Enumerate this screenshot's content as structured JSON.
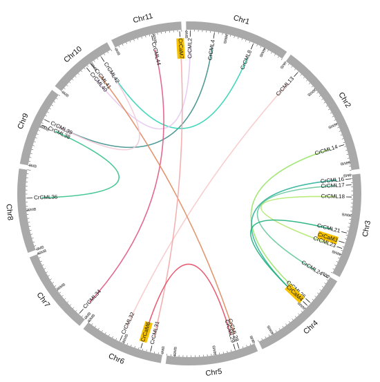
{
  "chromosomes": [
    {
      "id": "Chr1",
      "label": "Chr1",
      "size": 50,
      "ticks": [
        {
          "v": 0,
          "label": "0MB"
        },
        {
          "v": 20,
          "label": "20MB"
        },
        {
          "v": 40,
          "label": "40MB"
        }
      ]
    },
    {
      "id": "Chr2",
      "label": "Chr2",
      "size": 64,
      "ticks": [
        {
          "v": 0,
          "label": "0MB"
        },
        {
          "v": 20,
          "label": "20MB"
        },
        {
          "v": 40,
          "label": "40MB"
        },
        {
          "v": 60,
          "label": "60MB"
        }
      ]
    },
    {
      "id": "Chr3",
      "label": "Chr3",
      "size": 50,
      "ticks": [
        {
          "v": 0,
          "label": "0MB"
        },
        {
          "v": 20,
          "label": "20MB"
        },
        {
          "v": 40,
          "label": "40MB"
        }
      ]
    },
    {
      "id": "Chr4",
      "label": "Chr4",
      "size": 48,
      "ticks": [
        {
          "v": 0,
          "label": "0MB"
        },
        {
          "v": 20,
          "label": "20MB"
        },
        {
          "v": 40,
          "label": "40MB"
        }
      ]
    },
    {
      "id": "Chr5",
      "label": "Chr5",
      "size": 44,
      "ticks": [
        {
          "v": 0,
          "label": "0MB"
        },
        {
          "v": 20,
          "label": "20MB"
        },
        {
          "v": 40,
          "label": "40MB"
        }
      ]
    },
    {
      "id": "Chr6",
      "label": "Chr6",
      "size": 40,
      "ticks": [
        {
          "v": 0,
          "label": "0MB"
        },
        {
          "v": 20,
          "label": "20MB"
        },
        {
          "v": 40,
          "label": "40MB"
        }
      ]
    },
    {
      "id": "Chr7",
      "label": "Chr7",
      "size": 40,
      "ticks": [
        {
          "v": 0,
          "label": "0MB"
        },
        {
          "v": 20,
          "label": "20MB"
        },
        {
          "v": 40,
          "label": "40MB"
        }
      ]
    },
    {
      "id": "Chr8",
      "label": "Chr8",
      "size": 40,
      "ticks": [
        {
          "v": 0,
          "label": "0MB"
        },
        {
          "v": 20,
          "label": "20MB"
        }
      ]
    },
    {
      "id": "Chr9",
      "label": "Chr9",
      "size": 38,
      "ticks": [
        {
          "v": 0,
          "label": "0MB"
        },
        {
          "v": 20,
          "label": "20MB"
        }
      ]
    },
    {
      "id": "Chr10",
      "label": "Chr10",
      "size": 32,
      "ticks": [
        {
          "v": 0,
          "label": "0MB"
        },
        {
          "v": 20,
          "label": "20MB"
        }
      ]
    },
    {
      "id": "Chr11",
      "label": "Chr11",
      "size": 34,
      "ticks": [
        {
          "v": 0,
          "label": "0MB"
        },
        {
          "v": 20,
          "label": "20MB"
        }
      ]
    }
  ],
  "genes": [
    {
      "id": "CrCML2",
      "chr": "Chr1",
      "pos": 2,
      "highlight": false
    },
    {
      "id": "CrCML4",
      "chr": "Chr1",
      "pos": 14,
      "highlight": false
    },
    {
      "id": "CrCML8",
      "chr": "Chr1",
      "pos": 34,
      "highlight": false
    },
    {
      "id": "CrCML13",
      "chr": "Chr2",
      "pos": 8,
      "highlight": false
    },
    {
      "id": "CrCML14",
      "chr": "Chr2",
      "pos": 51,
      "highlight": false
    },
    {
      "id": "CrCML16",
      "chr": "Chr3",
      "pos": 2,
      "highlight": false
    },
    {
      "id": "CrCML17",
      "chr": "Chr3",
      "pos": 5,
      "highlight": false
    },
    {
      "id": "CrCML18",
      "chr": "Chr3",
      "pos": 11,
      "highlight": false
    },
    {
      "id": "CrCML21",
      "chr": "Chr3",
      "pos": 29,
      "highlight": false
    },
    {
      "id": "CrCaM3",
      "chr": "Chr3",
      "pos": 34,
      "highlight": true
    },
    {
      "id": "CrCML23",
      "chr": "Chr3",
      "pos": 37,
      "highlight": false
    },
    {
      "id": "CrCML24",
      "chr": "Chr4",
      "pos": 1,
      "highlight": false
    },
    {
      "id": "CrCML26",
      "chr": "Chr4",
      "pos": 16,
      "highlight": false
    },
    {
      "id": "CrCaM4",
      "chr": "Chr4",
      "pos": 18,
      "highlight": true
    },
    {
      "id": "CrCML28",
      "chr": "Chr5",
      "pos": 8,
      "highlight": false
    },
    {
      "id": "CrCML29",
      "chr": "Chr5",
      "pos": 10,
      "highlight": false
    },
    {
      "id": "CrCML31",
      "chr": "Chr6",
      "pos": 6,
      "highlight": false
    },
    {
      "id": "CrCaM6",
      "chr": "Chr6",
      "pos": 11,
      "highlight": true
    },
    {
      "id": "CrCML32",
      "chr": "Chr6",
      "pos": 22,
      "highlight": false
    },
    {
      "id": "CrCML34",
      "chr": "Chr7",
      "pos": 4,
      "highlight": false
    },
    {
      "id": "CrCML36",
      "chr": "Chr8",
      "pos": 26,
      "highlight": false
    },
    {
      "id": "CrCML38",
      "chr": "Chr9",
      "pos": 21,
      "highlight": false
    },
    {
      "id": "CrCML39",
      "chr": "Chr9",
      "pos": 24,
      "highlight": false
    },
    {
      "id": "CrCML40",
      "chr": "Chr10",
      "pos": 17,
      "highlight": false
    },
    {
      "id": "CrCML41",
      "chr": "Chr10",
      "pos": 20,
      "highlight": false
    },
    {
      "id": "CrCML42",
      "chr": "Chr10",
      "pos": 26,
      "highlight": false
    },
    {
      "id": "CrCML44",
      "chr": "Chr11",
      "pos": 19,
      "highlight": false
    },
    {
      "id": "CrCaM7",
      "chr": "Chr11",
      "pos": 33,
      "highlight": true
    }
  ],
  "links": [
    {
      "a": "CrCML4",
      "b": "CrCML39",
      "color": "#3b8f8a"
    },
    {
      "a": "CrCML8",
      "b": "CrCML42",
      "color": "#2fd3b5"
    },
    {
      "a": "CrCML2",
      "b": "CrCML40",
      "color": "#e6c8ee"
    },
    {
      "a": "CrCML13",
      "b": "CrCML32",
      "color": "#f7c9c9"
    },
    {
      "a": "CrCML14",
      "b": "CrCML26",
      "color": "#9be36a"
    },
    {
      "a": "CrCML16",
      "b": "CrCaM4",
      "color": "#2bb39a"
    },
    {
      "a": "CrCML17",
      "b": "CrCML24",
      "color": "#63c79a"
    },
    {
      "a": "CrCML18",
      "b": "CrCML23",
      "color": "#b2e86b"
    },
    {
      "a": "CrCML21",
      "b": "CrCaM4",
      "color": "#1fb07a"
    },
    {
      "a": "CrCML44",
      "b": "CrCML34",
      "color": "#e05a82"
    },
    {
      "a": "CrCML41",
      "b": "CrCML28",
      "color": "#e08a60"
    },
    {
      "a": "CrCaM7",
      "b": "CrCML31",
      "color": "#f4a6a6"
    },
    {
      "a": "CrCML36",
      "b": "CrCML38",
      "color": "#33c28a"
    },
    {
      "a": "CrCML29",
      "b": "CrCaM6",
      "color": "#e64a64"
    },
    {
      "a": "CrCML39",
      "b": "CrCML42",
      "color": "#f2c8d8"
    }
  ],
  "colors": {
    "ring": "#a9a9a9",
    "highlight": "#f7c300",
    "text": "#111111"
  }
}
